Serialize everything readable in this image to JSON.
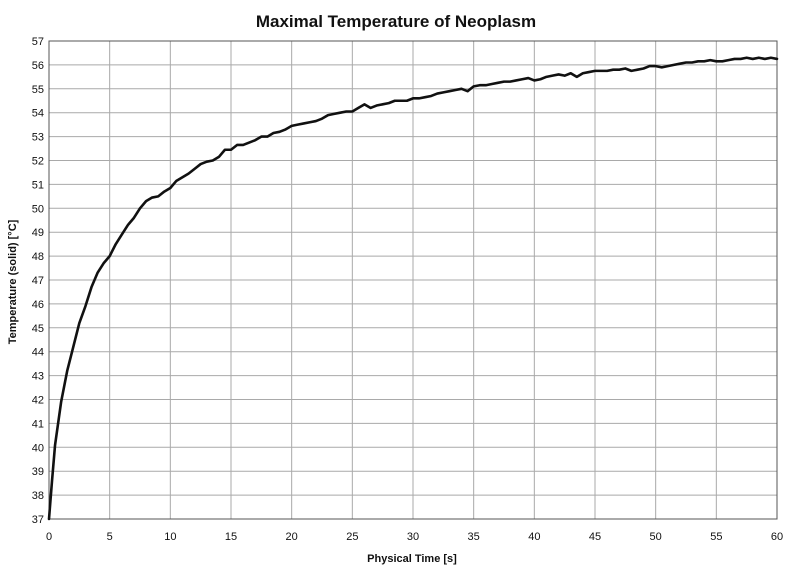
{
  "chart_data": {
    "type": "line",
    "title": "Maximal Temperature of Neoplasm",
    "xlabel": "Physical Time [s]",
    "ylabel": "Temperature (solid) [°C]",
    "xlim": [
      0,
      60
    ],
    "ylim": [
      37,
      57
    ],
    "xticks": [
      0,
      5,
      10,
      15,
      20,
      25,
      30,
      35,
      40,
      45,
      50,
      55,
      60
    ],
    "yticks": [
      37,
      38,
      39,
      40,
      41,
      42,
      43,
      44,
      45,
      46,
      47,
      48,
      49,
      50,
      51,
      52,
      53,
      54,
      55,
      56,
      57
    ],
    "grid": true,
    "legend": "none",
    "colors": {
      "line": "#111111",
      "grid": "#a9a9a9",
      "background": "#ffffff"
    },
    "series": [
      {
        "x": [
          0,
          0.25,
          0.5,
          0.75,
          1,
          1.5,
          2,
          2.5,
          3,
          3.5,
          4,
          4.5,
          5,
          5.5,
          6,
          6.5,
          7,
          7.5,
          8,
          8.5,
          9,
          9.5,
          10,
          10.5,
          11,
          11.5,
          12,
          12.5,
          13,
          13.5,
          14,
          14.5,
          15,
          15.5,
          16,
          16.5,
          17,
          17.5,
          18,
          18.5,
          19,
          19.5,
          20,
          20.5,
          21,
          21.5,
          22,
          22.5,
          23,
          23.5,
          24,
          24.5,
          25,
          25.5,
          26,
          26.5,
          27,
          27.5,
          28,
          28.5,
          29,
          29.5,
          30,
          30.5,
          31,
          31.5,
          32,
          32.5,
          33,
          33.5,
          34,
          34.5,
          35,
          35.5,
          36,
          36.5,
          37,
          37.5,
          38,
          38.5,
          39,
          39.5,
          40,
          40.5,
          41,
          41.5,
          42,
          42.5,
          43,
          43.5,
          44,
          44.5,
          45,
          45.5,
          46,
          46.5,
          47,
          47.5,
          48,
          48.5,
          49,
          49.5,
          50,
          50.5,
          51,
          51.5,
          52,
          52.5,
          53,
          53.5,
          54,
          54.5,
          55,
          55.5,
          56,
          56.5,
          57,
          57.5,
          58,
          58.5,
          59,
          59.5,
          60
        ],
        "y": [
          37.0,
          38.6,
          40.1,
          41.0,
          41.9,
          43.2,
          44.2,
          45.2,
          45.9,
          46.7,
          47.3,
          47.7,
          48.0,
          48.5,
          48.9,
          49.3,
          49.6,
          50.0,
          50.3,
          50.45,
          50.5,
          50.7,
          50.85,
          51.15,
          51.3,
          51.45,
          51.65,
          51.85,
          51.95,
          52.0,
          52.15,
          52.45,
          52.45,
          52.65,
          52.65,
          52.75,
          52.85,
          53.0,
          53.0,
          53.15,
          53.2,
          53.3,
          53.45,
          53.5,
          53.55,
          53.6,
          53.65,
          53.75,
          53.9,
          53.95,
          54.0,
          54.05,
          54.05,
          54.2,
          54.35,
          54.2,
          54.3,
          54.35,
          54.4,
          54.5,
          54.5,
          54.5,
          54.6,
          54.6,
          54.65,
          54.7,
          54.8,
          54.85,
          54.9,
          54.95,
          55.0,
          54.9,
          55.1,
          55.15,
          55.15,
          55.2,
          55.25,
          55.3,
          55.3,
          55.35,
          55.4,
          55.45,
          55.35,
          55.4,
          55.5,
          55.55,
          55.6,
          55.55,
          55.65,
          55.5,
          55.65,
          55.7,
          55.75,
          55.75,
          55.75,
          55.8,
          55.8,
          55.85,
          55.75,
          55.8,
          55.85,
          55.95,
          55.95,
          55.9,
          55.95,
          56.0,
          56.05,
          56.1,
          56.1,
          56.15,
          56.15,
          56.2,
          56.15,
          56.15,
          56.2,
          56.25,
          56.25,
          56.3,
          56.25,
          56.3,
          56.25,
          56.3,
          56.25
        ]
      }
    ]
  }
}
